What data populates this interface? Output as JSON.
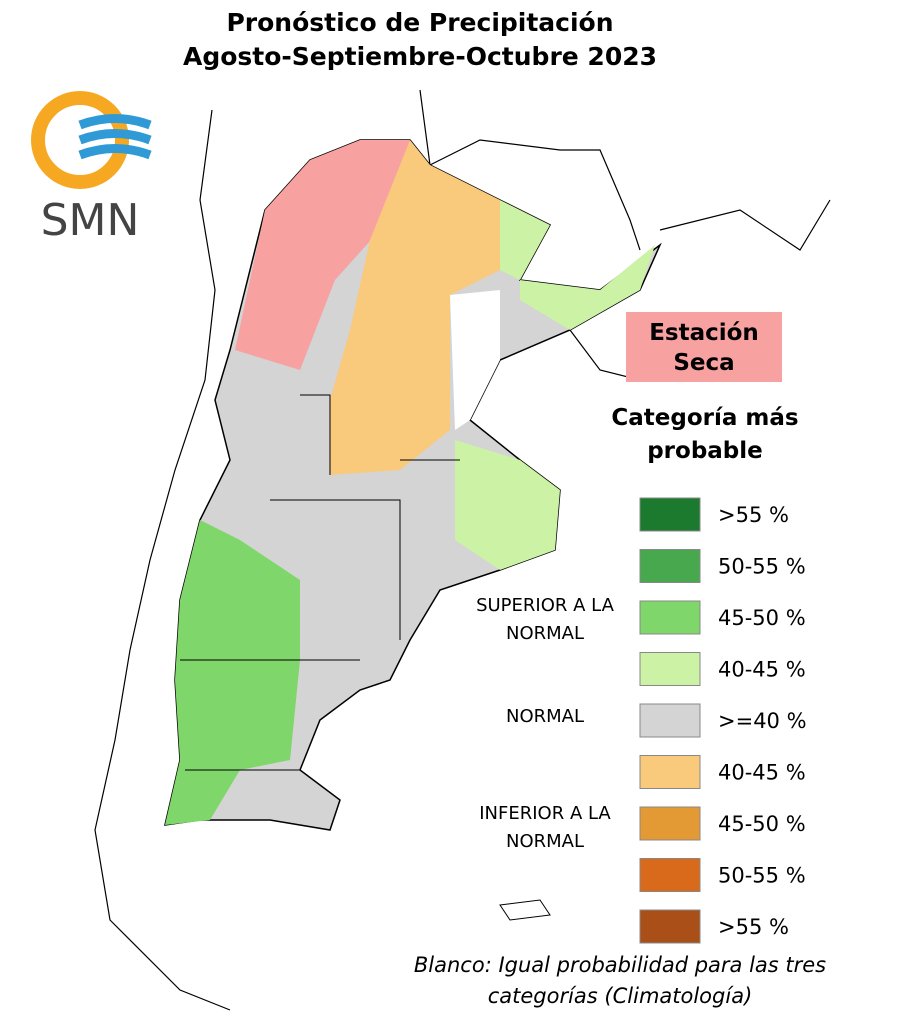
{
  "header": {
    "title": "Pronóstico de Precipitación",
    "subtitle": "Agosto-Septiembre-Octubre 2023"
  },
  "logo": {
    "text": "SMN"
  },
  "dry_season": {
    "label": "Estación Seca"
  },
  "legend": {
    "title": "Categoría más probable",
    "items": [
      {
        "label": ">55 %",
        "color": "#1b7a2e"
      },
      {
        "label": "50-55 %",
        "color": "#48a84e"
      },
      {
        "label": "45-50 %",
        "color": "#7fd66a"
      },
      {
        "label": "40-45 %",
        "color": "#ccf2a6"
      },
      {
        "label": ">=40 %",
        "color": "#d4d4d4"
      },
      {
        "label": "40-45 %",
        "color": "#f9c97c"
      },
      {
        "label": "45-50 %",
        "color": "#e39a35"
      },
      {
        "label": "50-55 %",
        "color": "#d96a1c"
      },
      {
        "label": ">55 %",
        "color": "#a94f17"
      }
    ],
    "groups": [
      "SUPERIOR A LA NORMAL",
      "NORMAL",
      "INFERIOR A LA NORMAL"
    ]
  },
  "note": "Blanco: Igual probabilidad para las tres categorías (Climatología)"
}
